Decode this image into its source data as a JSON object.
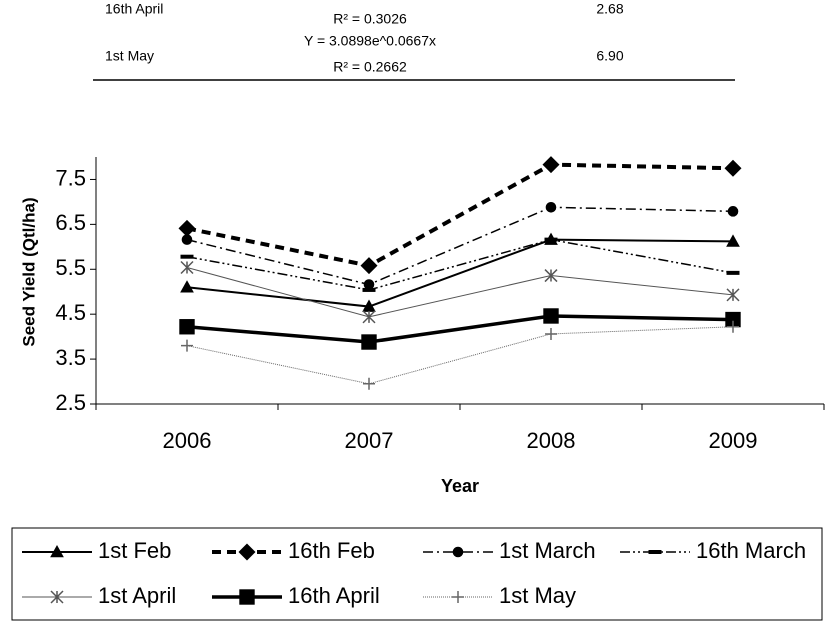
{
  "table": {
    "rows": [
      {
        "name": "16th April",
        "r2": "R² = 0.3026",
        "value": "2.68"
      },
      {
        "name": "1st May",
        "equation": "Y = 3.0898e^0.0667x",
        "r2": "R² = 0.2662",
        "value": "6.90"
      }
    ]
  },
  "chart_data": {
    "type": "line",
    "x_label": "Year",
    "y_label": "Seed Yield (Qtl/ha)",
    "categories": [
      "2006",
      "2007",
      "2008",
      "2009"
    ],
    "ylim": [
      2.5,
      8
    ],
    "yticks": [
      2.5,
      3.5,
      4.5,
      5.5,
      6.5,
      7.5
    ],
    "grid": false,
    "series": [
      {
        "name": "1st Feb",
        "color": "#000000",
        "marker": "triangle",
        "dash": "none",
        "width": 2,
        "values": [
          5.1,
          4.67,
          6.16,
          6.12
        ]
      },
      {
        "name": "16th Feb",
        "color": "#000000",
        "marker": "diamond",
        "dash": "9,6",
        "width": 4,
        "values": [
          6.41,
          5.58,
          7.83,
          7.75
        ]
      },
      {
        "name": "1st March",
        "color": "#000000",
        "marker": "circle",
        "dash": "10,4,2,4",
        "width": 1.5,
        "values": [
          6.16,
          5.16,
          6.88,
          6.79
        ]
      },
      {
        "name": "16th March",
        "color": "#000000",
        "marker": "bar",
        "dash": "10,3,2,3,2,3",
        "width": 1.5,
        "values": [
          5.78,
          5.04,
          6.16,
          5.42
        ]
      },
      {
        "name": "1st April",
        "color": "#555555",
        "marker": "star",
        "dash": "none",
        "width": 1,
        "values": [
          5.54,
          4.44,
          5.36,
          4.93
        ]
      },
      {
        "name": "16th April",
        "color": "#000000",
        "marker": "square",
        "dash": "none",
        "width": 3.5,
        "values": [
          4.22,
          3.88,
          4.46,
          4.38
        ]
      },
      {
        "name": "1st May",
        "color": "#666666",
        "marker": "plus",
        "dash": "1,1",
        "width": 1,
        "values": [
          3.8,
          2.95,
          4.06,
          4.22
        ]
      }
    ]
  }
}
